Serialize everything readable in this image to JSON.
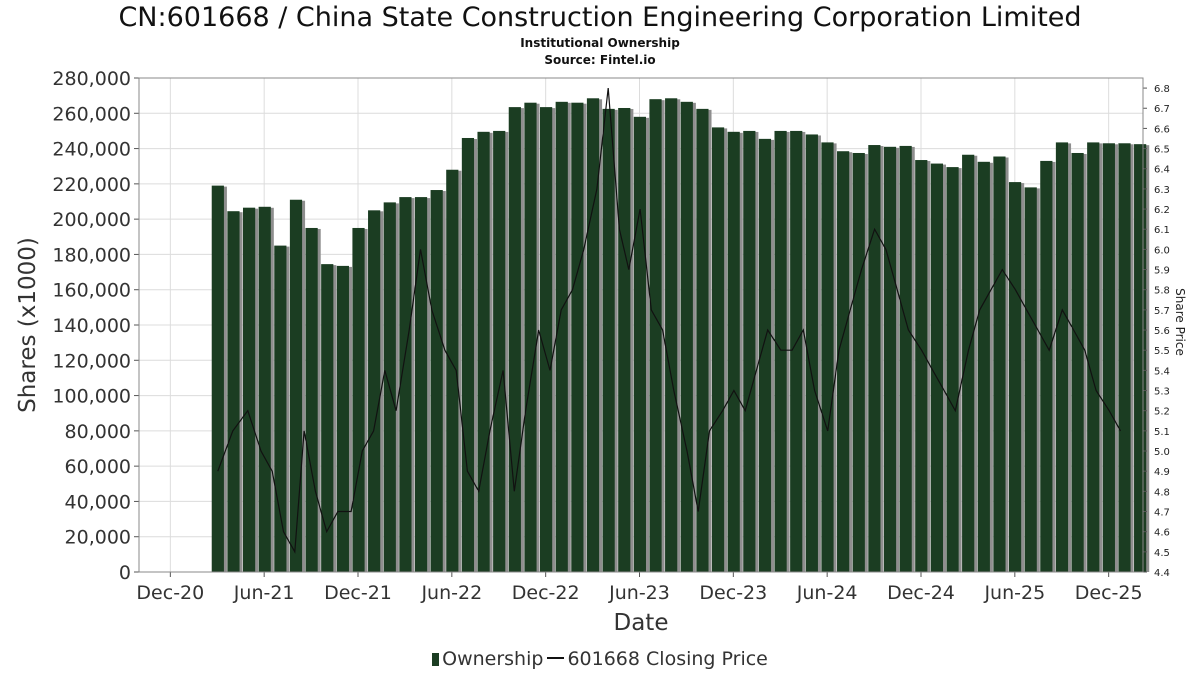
{
  "title": "CN:601668 / China State Construction Engineering Corporation Limited",
  "subtitle": "Institutional Ownership",
  "source": "Source: Fintel.io",
  "legend": {
    "ownership": "Ownership",
    "price": "601668 Closing Price"
  },
  "colors": {
    "bar": "#1b3d22",
    "bar_shadow": "#8e8e8e",
    "line": "#111111",
    "grid": "#dcdcdc",
    "axis": "#555555"
  },
  "chart_data": {
    "type": "bar",
    "title": "CN:601668 / China State Construction Engineering Corporation Limited",
    "xlabel": "Date",
    "ylabel": "Shares (x1000)",
    "y2label": "Share Price",
    "ylim": [
      0,
      280000
    ],
    "y2lim": [
      4.4,
      6.85
    ],
    "grid": true,
    "legend_position": "bottom",
    "x_range": [
      2020.75,
      2026.1
    ],
    "x_ticks": [
      {
        "label": "Dec-20",
        "x": 2020.917
      },
      {
        "label": "Jun-21",
        "x": 2021.417
      },
      {
        "label": "Dec-21",
        "x": 2021.917
      },
      {
        "label": "Jun-22",
        "x": 2022.417
      },
      {
        "label": "Dec-22",
        "x": 2022.917
      },
      {
        "label": "Jun-23",
        "x": 2023.417
      },
      {
        "label": "Dec-23",
        "x": 2023.917
      },
      {
        "label": "Jun-24",
        "x": 2024.417
      },
      {
        "label": "Dec-24",
        "x": 2024.917
      },
      {
        "label": "Jun-25",
        "x": 2025.417
      },
      {
        "label": "Dec-25",
        "x": 2025.917
      }
    ],
    "y_ticks": [
      "0",
      "20,000",
      "40,000",
      "60,000",
      "80,000",
      "100,000",
      "120,000",
      "140,000",
      "160,000",
      "180,000",
      "200,000",
      "220,000",
      "240,000",
      "260,000",
      "280,000"
    ],
    "y2_ticks": [
      "4.4",
      "4.5",
      "4.6",
      "4.7",
      "4.8",
      "4.9",
      "5.0",
      "5.1",
      "5.2",
      "5.3",
      "5.4",
      "5.5",
      "5.6",
      "5.7",
      "5.8",
      "5.9",
      "6.0",
      "6.1",
      "6.2",
      "6.3",
      "6.4",
      "6.5",
      "6.6",
      "6.7",
      "6.8"
    ],
    "ownership_start": 2021.17,
    "ownership_step": 0.0833,
    "series": [
      {
        "name": "Ownership",
        "values": [
          219000,
          204500,
          206500,
          207000,
          185000,
          211000,
          195000,
          174500,
          173500,
          195000,
          205000,
          209500,
          212500,
          212500,
          216500,
          228000,
          246000,
          249500,
          250000,
          263500,
          266000,
          263500,
          266500,
          266000,
          268500,
          262500,
          263000,
          258000,
          268000,
          268500,
          266500,
          262500,
          252000,
          249500,
          250000,
          245500,
          250000,
          250000,
          248000,
          243500,
          238500,
          237500,
          242000,
          241000,
          241500,
          233500,
          231500,
          229500,
          236500,
          232500,
          235500,
          221000,
          218000,
          233000,
          243500,
          237500,
          243500,
          243000,
          243000,
          242500
        ]
      },
      {
        "name": "601668 Closing Price",
        "x": [
          2021.17,
          2021.25,
          2021.33,
          2021.4,
          2021.46,
          2021.52,
          2021.58,
          2021.63,
          2021.69,
          2021.75,
          2021.81,
          2021.88,
          2021.94,
          2022.0,
          2022.06,
          2022.12,
          2022.19,
          2022.25,
          2022.31,
          2022.38,
          2022.44,
          2022.5,
          2022.56,
          2022.62,
          2022.69,
          2022.75,
          2022.81,
          2022.88,
          2022.94,
          2023.0,
          2023.06,
          2023.12,
          2023.19,
          2023.25,
          2023.31,
          2023.36,
          2023.42,
          2023.48,
          2023.54,
          2023.6,
          2023.67,
          2023.73,
          2023.79,
          2023.86,
          2023.92,
          2023.98,
          2024.04,
          2024.1,
          2024.17,
          2024.23,
          2024.29,
          2024.35,
          2024.42,
          2024.48,
          2024.54,
          2024.6,
          2024.67,
          2024.73,
          2024.79,
          2024.85,
          2024.92,
          2024.98,
          2025.04,
          2025.1,
          2025.17,
          2025.23,
          2025.29,
          2025.35,
          2025.42,
          2025.48,
          2025.54,
          2025.6,
          2025.67,
          2025.73,
          2025.79,
          2025.85,
          2025.92,
          2025.98
        ],
        "values": [
          4.9,
          5.1,
          5.2,
          5.0,
          4.9,
          4.6,
          4.5,
          5.1,
          4.8,
          4.6,
          4.7,
          4.7,
          5.0,
          5.1,
          5.4,
          5.2,
          5.6,
          6.0,
          5.7,
          5.5,
          5.4,
          4.9,
          4.8,
          5.1,
          5.4,
          4.8,
          5.2,
          5.6,
          5.4,
          5.7,
          5.8,
          6.0,
          6.3,
          6.8,
          6.1,
          5.9,
          6.2,
          5.7,
          5.6,
          5.3,
          5.0,
          4.7,
          5.1,
          5.2,
          5.3,
          5.2,
          5.4,
          5.6,
          5.5,
          5.5,
          5.6,
          5.3,
          5.1,
          5.5,
          5.7,
          5.9,
          6.1,
          6.0,
          5.8,
          5.6,
          5.5,
          5.4,
          5.3,
          5.2,
          5.5,
          5.7,
          5.8,
          5.9,
          5.8,
          5.7,
          5.6,
          5.5,
          5.7,
          5.6,
          5.5,
          5.3,
          5.2,
          5.1
        ]
      }
    ]
  }
}
